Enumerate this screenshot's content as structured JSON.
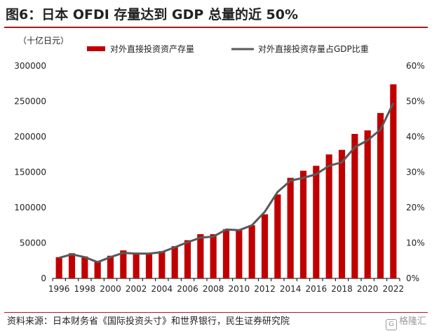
{
  "header": {
    "title": "图6：日本 OFDI 存量达到 GDP 总量的近 50%"
  },
  "footer": {
    "source": "资料来源：日本财务省《国际投资头寸》和世界银行，民生证券研究院",
    "watermark_logo": "G",
    "watermark_text": "格隆汇"
  },
  "chart_data": {
    "type": "bar",
    "unit_label": "（十亿日元）",
    "categories": [
      "1996",
      "1997",
      "1998",
      "1999",
      "2000",
      "2001",
      "2002",
      "2003",
      "2004",
      "2005",
      "2006",
      "2007",
      "2008",
      "2009",
      "2010",
      "2011",
      "2012",
      "2013",
      "2014",
      "2015",
      "2016",
      "2017",
      "2018",
      "2019",
      "2020",
      "2021",
      "2022"
    ],
    "x_tick_labels": [
      "1996",
      "1998",
      "2000",
      "2002",
      "2004",
      "2006",
      "2008",
      "2010",
      "2012",
      "2014",
      "2016",
      "2018",
      "2020",
      "2022"
    ],
    "series": [
      {
        "name": "对外直接投资资产存量",
        "type": "bar",
        "axis": "left",
        "color": "#c00000",
        "values": [
          30000,
          35500,
          31000,
          24000,
          32000,
          39500,
          36500,
          35000,
          38500,
          45500,
          54000,
          62500,
          62500,
          69500,
          68500,
          75000,
          90500,
          118500,
          142000,
          152000,
          159000,
          175000,
          181500,
          204000,
          209000,
          233500,
          274000
        ]
      },
      {
        "name": "对外直接投资存量占GDP比重",
        "type": "line",
        "axis": "right",
        "color": "#595959",
        "values": [
          5.8,
          6.8,
          6.0,
          4.6,
          6.0,
          7.2,
          7.0,
          7.0,
          7.4,
          8.8,
          10.2,
          11.5,
          11.8,
          13.8,
          13.6,
          15.0,
          18.8,
          24.4,
          27.6,
          28.4,
          29.4,
          31.8,
          32.8,
          37.0,
          39.0,
          42.0,
          49.5
        ]
      }
    ],
    "y_left": {
      "min": 0,
      "max": 300000,
      "ticks": [
        "0",
        "50000",
        "100000",
        "150000",
        "200000",
        "250000",
        "300000"
      ]
    },
    "y_right": {
      "min": 0,
      "max": 60,
      "ticks": [
        "0%",
        "10%",
        "20%",
        "30%",
        "40%",
        "50%",
        "60%"
      ]
    },
    "grid": false,
    "legend_position": "top"
  }
}
